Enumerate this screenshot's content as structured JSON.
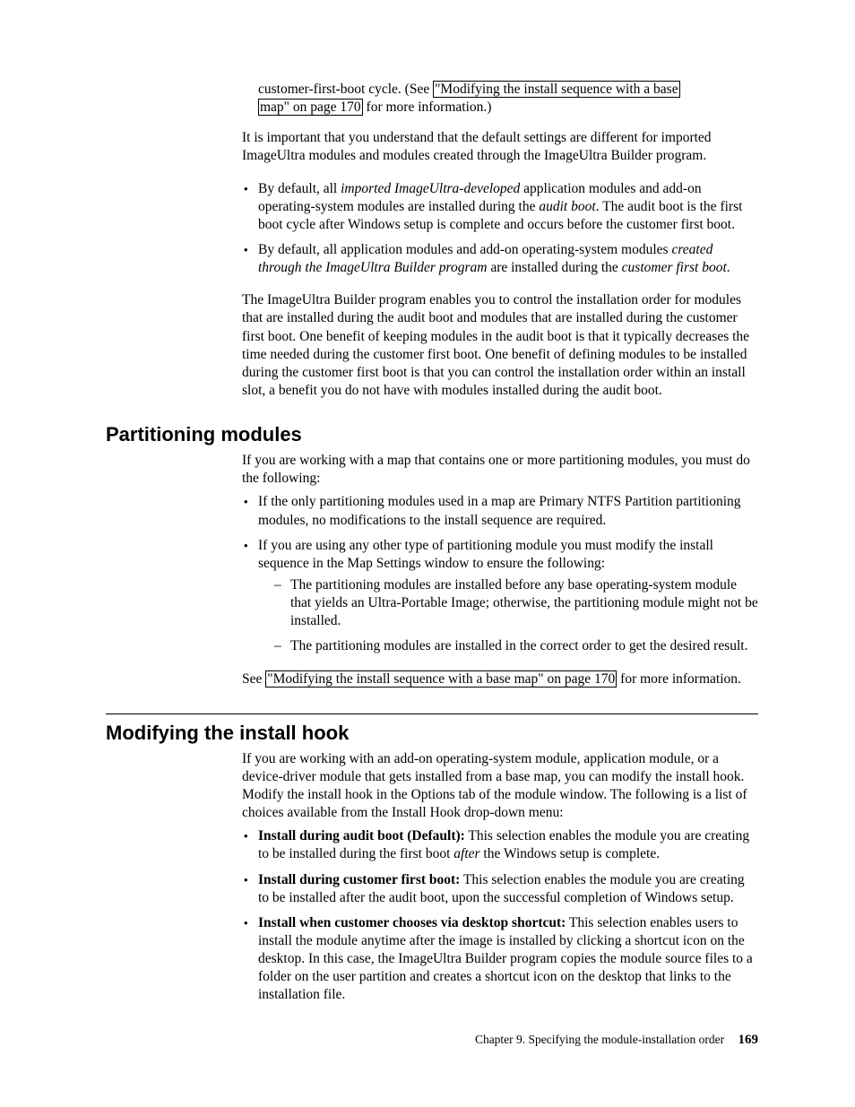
{
  "top": {
    "continuation": "customer-first-boot cycle. (See ",
    "link1a": "\"Modifying the install sequence with a base",
    "link1b": "map\" on page 170",
    "cont_tail": " for more information.)",
    "p2": "It is important that you understand that the default settings are different for imported ImageUltra modules and modules created through the ImageUltra Builder program.",
    "b1_pre": " By default, all ",
    "b1_em": "imported ImageUltra-developed",
    "b1_mid": " application modules and add-on operating-system modules are installed during the ",
    "b1_em2": "audit boot",
    "b1_post": ". The audit boot is the first boot cycle after Windows setup is complete and occurs before the customer first boot.",
    "b2_pre": "By default, all application modules and add-on operating-system modules ",
    "b2_em": "created through the ImageUltra Builder program",
    "b2_mid": " are installed during the ",
    "b2_em2": "customer first boot",
    "b2_post": ".",
    "p3": "The ImageUltra Builder program enables you to control the installation order for modules that are installed during the audit boot and modules that are installed during the customer first boot. One benefit of keeping modules in the audit boot is that it typically decreases the time needed during the customer first boot. One benefit of defining modules to be installed during the customer first boot is that you can control the installation order within an install slot, a benefit you do not have with modules installed during the audit boot."
  },
  "part": {
    "heading": "Partitioning modules",
    "p1": "If you are working with a map that contains one or more partitioning modules, you must do the following:",
    "b1": "If the only partitioning modules used in a map are Primary NTFS Partition partitioning modules, no modifications to the install sequence are required.",
    "b2": "If you are using any other type of partitioning module you must modify the install sequence in the Map Settings window to ensure the following:",
    "d1": "The partitioning modules are installed before any base operating-system module that yields an Ultra-Portable Image; otherwise, the partitioning module might not be installed.",
    "d2": "The partitioning modules are installed in the correct order to get the desired result.",
    "see_pre": "See ",
    "see_link": "\"Modifying the install sequence with a base map\" on page 170",
    "see_post": " for more information."
  },
  "hook": {
    "heading": "Modifying the install hook",
    "p1": "If you are working with an add-on operating-system module, application module, or a device-driver module that gets installed from a base map, you can modify the install hook. Modify the install hook in the Options tab of the module window. The following is a list of choices available from the Install Hook drop-down menu:",
    "b1_strong": "Install during audit boot (Default):",
    "b1_mid": " This selection enables the module you are creating to be installed during the first boot ",
    "b1_em": "after",
    "b1_post": " the Windows setup is complete.",
    "b2_strong": "Install during customer first boot:",
    "b2_post": " This selection enables the module you are creating to be installed after the audit boot, upon the successful completion of Windows setup.",
    "b3_strong": "Install when customer chooses via desktop shortcut:",
    "b3_post": " This selection enables users to install the module anytime after the image is installed by clicking a shortcut icon on the desktop. In this case, the ImageUltra Builder program copies the module source files to a folder on the user partition and creates a shortcut icon on the desktop that links to the installation file."
  },
  "footer": {
    "chapter": "Chapter 9. Specifying the module-installation order",
    "page": "169"
  }
}
